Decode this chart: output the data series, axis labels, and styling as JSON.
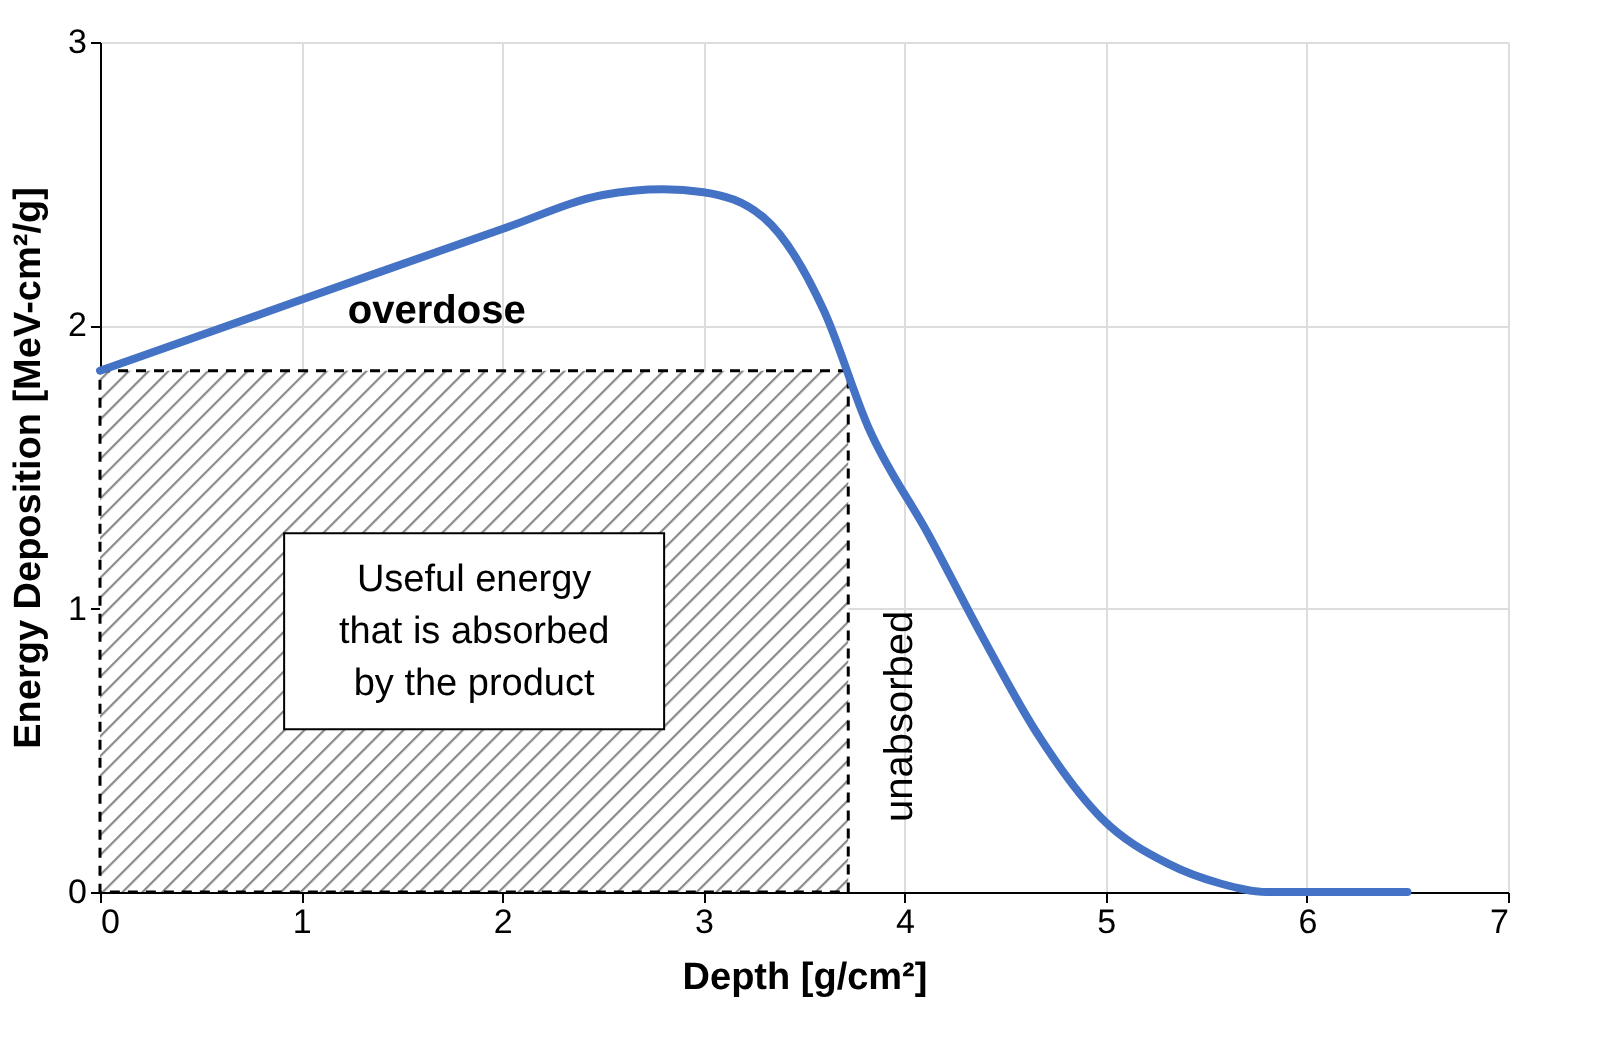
{
  "chart_data": {
    "type": "line",
    "xlabel": "Depth [g/cm²]",
    "ylabel": "Energy Deposition [MeV-cm²/g]",
    "x": [
      0,
      1,
      2,
      2.5,
      2.8,
      3.0,
      3.3,
      3.6,
      3.82,
      4.12,
      4.38,
      4.65,
      4.98,
      5.31,
      5.57,
      5.8,
      6.5
    ],
    "series": [
      {
        "color": "#4472c4",
        "values": [
          1.84,
          2.09,
          2.34,
          2.46,
          2.48,
          2.47,
          2.38,
          2.05,
          1.64,
          1.26,
          0.91,
          0.57,
          0.26,
          0.1,
          0.03,
          0,
          0
        ]
      }
    ],
    "xlim": [
      0,
      7
    ],
    "xticks": [
      0,
      1,
      2,
      3,
      4,
      5,
      6,
      7
    ],
    "ylim": [
      0,
      3
    ],
    "yticks": [
      0,
      1,
      2,
      3
    ],
    "grid": true,
    "marker": "none",
    "line_style": "solid",
    "bands": [
      {
        "axis": "x",
        "from": 0,
        "to": 3.72,
        "label": "Useful energy\nthat is absorbed\nby the product"
      }
    ],
    "annotations": [
      "overdose",
      "unabsorbed"
    ]
  }
}
